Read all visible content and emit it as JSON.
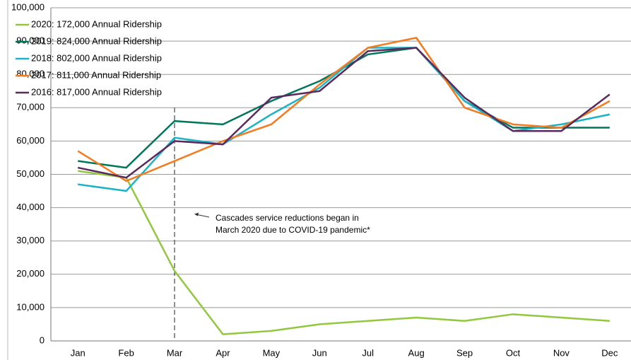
{
  "chart_data": {
    "type": "line",
    "categories": [
      "Jan",
      "Feb",
      "Mar",
      "Apr",
      "May",
      "Jun",
      "Jul",
      "Aug",
      "Sep",
      "Oct",
      "Nov",
      "Dec"
    ],
    "series": [
      {
        "name": "2020: 172,000 Annual Ridership",
        "color": "#92c83e",
        "values": [
          51000,
          49000,
          21000,
          2000,
          3000,
          5000,
          6000,
          7000,
          6000,
          8000,
          7000,
          6000
        ]
      },
      {
        "name": "2019: 824,000 Annual Ridership",
        "color": "#00775a",
        "values": [
          54000,
          52000,
          66000,
          65000,
          72000,
          78000,
          86000,
          88000,
          72000,
          64000,
          64000,
          64000
        ]
      },
      {
        "name": "2018: 802,000 Annual Ridership",
        "color": "#1cb4c4",
        "values": [
          47000,
          45000,
          61000,
          59000,
          68000,
          76000,
          88000,
          88000,
          72000,
          63000,
          65000,
          68000
        ]
      },
      {
        "name": "2017: 811,000 Annual Ridership",
        "color": "#f47b20",
        "values": [
          57000,
          48000,
          54000,
          60000,
          65000,
          77000,
          88000,
          91000,
          70000,
          65000,
          64000,
          72000
        ]
      },
      {
        "name": "2016: 817,000 Annual Ridership",
        "color": "#5a2a5e",
        "values": [
          52000,
          49000,
          60000,
          59000,
          73000,
          75000,
          87000,
          88000,
          73000,
          63000,
          63000,
          74000
        ]
      }
    ],
    "annotation": [
      "Cascades service reductions began in",
      "March 2020 due to COVID-19 pandemic*"
    ],
    "ylim": [
      0,
      100000
    ],
    "yticks": [
      0,
      {
        "value": 10000,
        "label": "10,000"
      },
      {
        "value": 20000,
        "label": "20,000"
      },
      {
        "value": 30000,
        "label": "30,000"
      },
      {
        "value": 40000,
        "label": "40,000"
      },
      {
        "value": 50000,
        "label": "50,000"
      },
      {
        "value": 60000,
        "label": "60,000"
      },
      {
        "value": 70000,
        "label": "70,000"
      },
      {
        "value": 80000,
        "label": "80,000"
      },
      {
        "value": 90000,
        "label": "90,000"
      },
      {
        "value": 100000,
        "label": "100,000"
      }
    ],
    "grid": true,
    "legend": "top-left"
  }
}
